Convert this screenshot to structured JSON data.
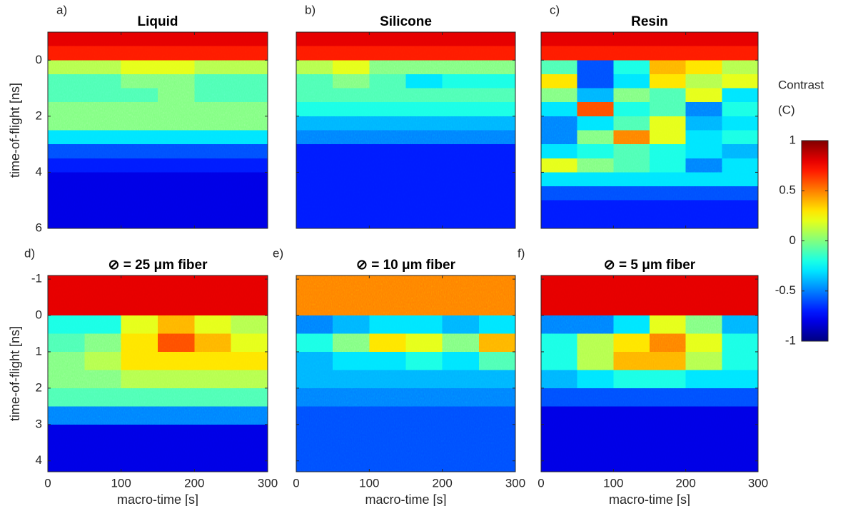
{
  "chart_data": [
    {
      "type": "heatmap",
      "panel_label": "a)",
      "title": "Liquid",
      "ylabel": "time-of-flight [ns]",
      "x": [
        25,
        75,
        125,
        175,
        225,
        275
      ],
      "y": [
        -0.75,
        -0.25,
        0.25,
        0.75,
        1.25,
        1.75,
        2.25,
        2.75,
        3.25,
        3.75,
        4.25,
        4.75,
        5.25,
        5.75
      ],
      "values": [
        [
          0.8,
          0.8,
          0.8,
          0.8,
          0.8,
          0.8
        ],
        [
          0.7,
          0.7,
          0.7,
          0.7,
          0.7,
          0.7
        ],
        [
          0.1,
          0.1,
          0.2,
          0.2,
          0.1,
          0.1
        ],
        [
          -0.1,
          -0.1,
          0,
          0,
          -0.1,
          -0.1
        ],
        [
          -0.1,
          -0.1,
          -0.1,
          0,
          -0.1,
          -0.1
        ],
        [
          0,
          0,
          0,
          0,
          0,
          0
        ],
        [
          0,
          0,
          0,
          0,
          0,
          0
        ],
        [
          -0.3,
          -0.3,
          -0.3,
          -0.3,
          -0.3,
          -0.3
        ],
        [
          -0.6,
          -0.6,
          -0.6,
          -0.6,
          -0.6,
          -0.6
        ],
        [
          -0.7,
          -0.7,
          -0.7,
          -0.7,
          -0.7,
          -0.7
        ],
        [
          -0.8,
          -0.8,
          -0.8,
          -0.8,
          -0.8,
          -0.8
        ],
        [
          -0.8,
          -0.8,
          -0.8,
          -0.8,
          -0.8,
          -0.8
        ],
        [
          -0.8,
          -0.8,
          -0.8,
          -0.8,
          -0.8,
          -0.8
        ],
        [
          -0.8,
          -0.8,
          -0.8,
          -0.8,
          -0.8,
          -0.8
        ]
      ],
      "xlim": [
        0,
        300
      ],
      "ylim": [
        6,
        -1
      ],
      "xticks": [
        0,
        100,
        200,
        300
      ],
      "yticks": [
        0,
        2,
        4,
        6
      ]
    },
    {
      "type": "heatmap",
      "panel_label": "b)",
      "title": "Silicone",
      "x": [
        25,
        75,
        125,
        175,
        225,
        275
      ],
      "y": [
        -0.75,
        -0.25,
        0.25,
        0.75,
        1.25,
        1.75,
        2.25,
        2.75,
        3.25,
        3.75,
        4.25,
        4.75,
        5.25,
        5.75
      ],
      "values": [
        [
          0.8,
          0.8,
          0.8,
          0.8,
          0.8,
          0.8
        ],
        [
          0.7,
          0.7,
          0.7,
          0.7,
          0.7,
          0.7
        ],
        [
          0.1,
          0.2,
          0,
          0,
          0,
          0
        ],
        [
          -0.1,
          0,
          -0.1,
          -0.3,
          -0.2,
          -0.2
        ],
        [
          -0.1,
          -0.1,
          -0.1,
          -0.1,
          -0.1,
          -0.1
        ],
        [
          -0.2,
          -0.2,
          -0.2,
          -0.2,
          -0.2,
          -0.2
        ],
        [
          -0.4,
          -0.4,
          -0.4,
          -0.4,
          -0.4,
          -0.4
        ],
        [
          -0.5,
          -0.5,
          -0.5,
          -0.5,
          -0.5,
          -0.5
        ],
        [
          -0.7,
          -0.7,
          -0.7,
          -0.7,
          -0.7,
          -0.7
        ],
        [
          -0.7,
          -0.7,
          -0.7,
          -0.7,
          -0.7,
          -0.7
        ],
        [
          -0.7,
          -0.7,
          -0.7,
          -0.7,
          -0.7,
          -0.7
        ],
        [
          -0.7,
          -0.7,
          -0.7,
          -0.7,
          -0.7,
          -0.7
        ],
        [
          -0.7,
          -0.7,
          -0.7,
          -0.7,
          -0.7,
          -0.7
        ],
        [
          -0.7,
          -0.7,
          -0.7,
          -0.7,
          -0.7,
          -0.7
        ]
      ],
      "xlim": [
        0,
        300
      ],
      "ylim": [
        6,
        -1
      ],
      "xticks": [
        0,
        100,
        200,
        300
      ],
      "yticks": [
        0,
        2,
        4,
        6
      ]
    },
    {
      "type": "heatmap",
      "panel_label": "c)",
      "title": "Resin",
      "x": [
        25,
        75,
        125,
        175,
        225,
        275
      ],
      "y": [
        -0.75,
        -0.25,
        0.25,
        0.75,
        1.25,
        1.75,
        2.25,
        2.75,
        3.25,
        3.75,
        4.25,
        4.75,
        5.25,
        5.75
      ],
      "values": [
        [
          0.8,
          0.8,
          0.8,
          0.8,
          0.8,
          0.8
        ],
        [
          0.7,
          0.7,
          0.7,
          0.7,
          0.7,
          0.7
        ],
        [
          -0.1,
          -0.6,
          -0.2,
          0.4,
          0.3,
          0.1
        ],
        [
          0.3,
          -0.6,
          -0.3,
          0.3,
          0.1,
          0.2
        ],
        [
          0,
          -0.4,
          0,
          -0.1,
          0.2,
          -0.3
        ],
        [
          -0.3,
          0.6,
          -0.2,
          -0.1,
          -0.5,
          -0.2
        ],
        [
          -0.5,
          -0.3,
          -0.1,
          0.2,
          -0.4,
          -0.3
        ],
        [
          -0.5,
          0,
          0.5,
          0.2,
          -0.3,
          -0.2
        ],
        [
          -0.3,
          -0.2,
          -0.1,
          -0.2,
          -0.3,
          -0.4
        ],
        [
          0.2,
          0,
          -0.1,
          -0.2,
          -0.5,
          -0.3
        ],
        [
          -0.3,
          -0.3,
          -0.3,
          -0.3,
          -0.3,
          -0.3
        ],
        [
          -0.6,
          -0.6,
          -0.6,
          -0.6,
          -0.6,
          -0.6
        ],
        [
          -0.7,
          -0.7,
          -0.7,
          -0.7,
          -0.7,
          -0.7
        ],
        [
          -0.7,
          -0.7,
          -0.7,
          -0.7,
          -0.7,
          -0.7
        ]
      ],
      "xlim": [
        0,
        300
      ],
      "ylim": [
        6,
        -1
      ],
      "xticks": [
        0,
        100,
        200,
        300
      ],
      "yticks": [
        0,
        2,
        4,
        6
      ]
    },
    {
      "type": "heatmap",
      "panel_label": "d)",
      "title": "⊘ = 25 μm fiber",
      "xlabel": "macro-time [s]",
      "ylabel": "time-of-flight [ns]",
      "x": [
        25,
        75,
        125,
        175,
        225,
        275
      ],
      "y": [
        -1.25,
        -0.75,
        -0.25,
        0.25,
        0.75,
        1.25,
        1.75,
        2.25,
        2.75,
        3.25,
        3.75,
        4.25
      ],
      "values": [
        [
          0.8,
          0.8,
          0.8,
          0.8,
          0.8,
          0.8
        ],
        [
          0.8,
          0.8,
          0.8,
          0.8,
          0.8,
          0.8
        ],
        [
          0.8,
          0.8,
          0.8,
          0.8,
          0.8,
          0.8
        ],
        [
          -0.2,
          -0.2,
          0.2,
          0.4,
          0.2,
          0.1
        ],
        [
          -0.1,
          0,
          0.3,
          0.6,
          0.4,
          0.2
        ],
        [
          0,
          0.1,
          0.3,
          0.3,
          0.3,
          0.3
        ],
        [
          0,
          0,
          0.1,
          0.1,
          0.1,
          0.1
        ],
        [
          -0.1,
          -0.1,
          -0.1,
          -0.1,
          -0.1,
          -0.1
        ],
        [
          -0.5,
          -0.5,
          -0.5,
          -0.5,
          -0.5,
          -0.5
        ],
        [
          -0.8,
          -0.8,
          -0.8,
          -0.8,
          -0.8,
          -0.8
        ],
        [
          -0.8,
          -0.8,
          -0.8,
          -0.8,
          -0.8,
          -0.8
        ],
        [
          -0.8,
          -0.8,
          -0.8,
          -0.8,
          -0.8,
          -0.8
        ]
      ],
      "xlim": [
        0,
        300
      ],
      "ylim": [
        4.3,
        -1.1
      ],
      "xticks": [
        0,
        100,
        200,
        300
      ],
      "yticks": [
        -1,
        0,
        1,
        2,
        3,
        4
      ]
    },
    {
      "type": "heatmap",
      "panel_label": "e)",
      "title": "⊘ = 10 μm fiber",
      "xlabel": "macro-time [s]",
      "x": [
        25,
        75,
        125,
        175,
        225,
        275
      ],
      "y": [
        -1.25,
        -0.75,
        -0.25,
        0.25,
        0.75,
        1.25,
        1.75,
        2.25,
        2.75,
        3.25,
        3.75,
        4.25
      ],
      "values": [
        [
          0.5,
          0.5,
          0.5,
          0.5,
          0.5,
          0.5
        ],
        [
          0.5,
          0.5,
          0.5,
          0.5,
          0.5,
          0.5
        ],
        [
          0.5,
          0.5,
          0.5,
          0.5,
          0.5,
          0.5
        ],
        [
          -0.5,
          -0.4,
          -0.3,
          -0.3,
          -0.4,
          -0.3
        ],
        [
          -0.2,
          0,
          0.3,
          0.2,
          0,
          0.4
        ],
        [
          -0.4,
          -0.3,
          -0.3,
          -0.2,
          -0.3,
          -0.1
        ],
        [
          -0.4,
          -0.4,
          -0.4,
          -0.4,
          -0.4,
          -0.4
        ],
        [
          -0.5,
          -0.5,
          -0.5,
          -0.5,
          -0.5,
          -0.5
        ],
        [
          -0.6,
          -0.6,
          -0.6,
          -0.6,
          -0.6,
          -0.6
        ],
        [
          -0.6,
          -0.6,
          -0.6,
          -0.6,
          -0.6,
          -0.6
        ],
        [
          -0.6,
          -0.6,
          -0.6,
          -0.6,
          -0.6,
          -0.6
        ],
        [
          -0.6,
          -0.6,
          -0.6,
          -0.6,
          -0.6,
          -0.6
        ]
      ],
      "xlim": [
        0,
        300
      ],
      "ylim": [
        4.3,
        -1.1
      ],
      "xticks": [
        0,
        100,
        200,
        300
      ],
      "yticks": [
        -1,
        0,
        1,
        2,
        3,
        4
      ]
    },
    {
      "type": "heatmap",
      "panel_label": "f)",
      "title": "⊘ = 5 μm fiber",
      "xlabel": "macro-time [s]",
      "x": [
        25,
        75,
        125,
        175,
        225,
        275
      ],
      "y": [
        -1.25,
        -0.75,
        -0.25,
        0.25,
        0.75,
        1.25,
        1.75,
        2.25,
        2.75,
        3.25,
        3.75,
        4.25
      ],
      "values": [
        [
          0.8,
          0.8,
          0.8,
          0.8,
          0.8,
          0.8
        ],
        [
          0.8,
          0.8,
          0.8,
          0.8,
          0.8,
          0.8
        ],
        [
          0.8,
          0.8,
          0.8,
          0.8,
          0.8,
          0.8
        ],
        [
          -0.5,
          -0.5,
          -0.3,
          0.2,
          0,
          -0.4
        ],
        [
          -0.2,
          0.1,
          0.3,
          0.5,
          0.2,
          -0.2
        ],
        [
          -0.2,
          0.1,
          0.4,
          0.4,
          0.1,
          -0.2
        ],
        [
          -0.4,
          -0.3,
          -0.2,
          -0.2,
          -0.3,
          -0.3
        ],
        [
          -0.6,
          -0.6,
          -0.6,
          -0.6,
          -0.6,
          -0.6
        ],
        [
          -0.8,
          -0.8,
          -0.8,
          -0.8,
          -0.8,
          -0.8
        ],
        [
          -0.8,
          -0.8,
          -0.8,
          -0.8,
          -0.8,
          -0.8
        ],
        [
          -0.8,
          -0.8,
          -0.8,
          -0.8,
          -0.8,
          -0.8
        ],
        [
          -0.8,
          -0.8,
          -0.8,
          -0.8,
          -0.8,
          -0.8
        ]
      ],
      "xlim": [
        0,
        300
      ],
      "ylim": [
        4.3,
        -1.1
      ],
      "xticks": [
        0,
        100,
        200,
        300
      ],
      "yticks": [
        -1,
        0,
        1,
        2,
        3,
        4
      ]
    }
  ],
  "colorbar": {
    "label": [
      "Contrast",
      "(C)"
    ],
    "lim": [
      -1,
      1
    ],
    "ticks": [
      1,
      0.5,
      0,
      -0.5,
      -1
    ],
    "colormap": "jet"
  }
}
